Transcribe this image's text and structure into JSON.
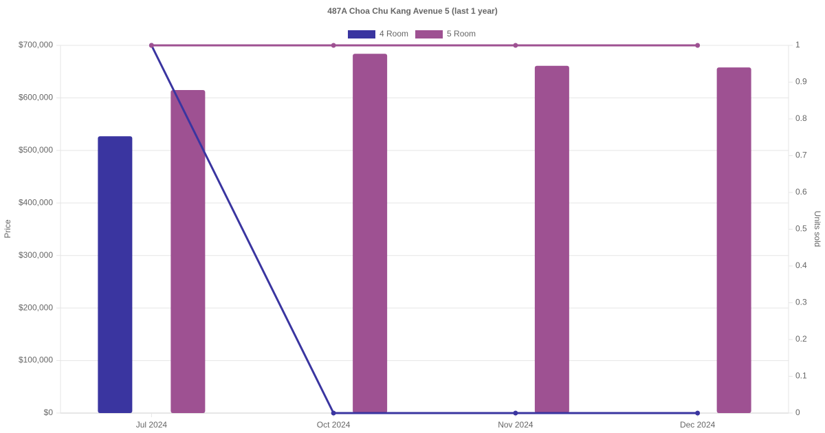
{
  "chart_data": {
    "type": "bar_line",
    "title": "487A Choa Chu Kang Avenue 5 (last 1 year)",
    "y_label": "Price",
    "y2_label": "Units sold",
    "categories": [
      "Jul 2024",
      "Oct 2024",
      "Nov 2024",
      "Dec 2024"
    ],
    "series": [
      {
        "name": "4 Room",
        "color": "#3a35a0",
        "values": [
          527000,
          null,
          null,
          null
        ],
        "units_sold": [
          1,
          0,
          0,
          0
        ]
      },
      {
        "name": "5 Room",
        "color": "#9e5192",
        "values": [
          615000,
          684000,
          661000,
          658000
        ],
        "units_sold": [
          1,
          1,
          1,
          1
        ]
      }
    ],
    "ylim": [
      0,
      700000
    ],
    "yticks": [
      {
        "value": 0,
        "label": "$0"
      },
      {
        "value": 100000,
        "label": "$100,000"
      },
      {
        "value": 200000,
        "label": "$200,000"
      },
      {
        "value": 300000,
        "label": "$300,000"
      },
      {
        "value": 400000,
        "label": "$400,000"
      },
      {
        "value": 500000,
        "label": "$500,000"
      },
      {
        "value": 600000,
        "label": "$600,000"
      },
      {
        "value": 700000,
        "label": "$700,000"
      }
    ],
    "y2lim": [
      0,
      1
    ],
    "y2ticks": [
      0,
      0.1,
      0.2,
      0.3,
      0.4,
      0.5,
      0.6,
      0.7,
      0.8,
      0.9,
      1
    ],
    "grid": true,
    "legend": "top"
  }
}
